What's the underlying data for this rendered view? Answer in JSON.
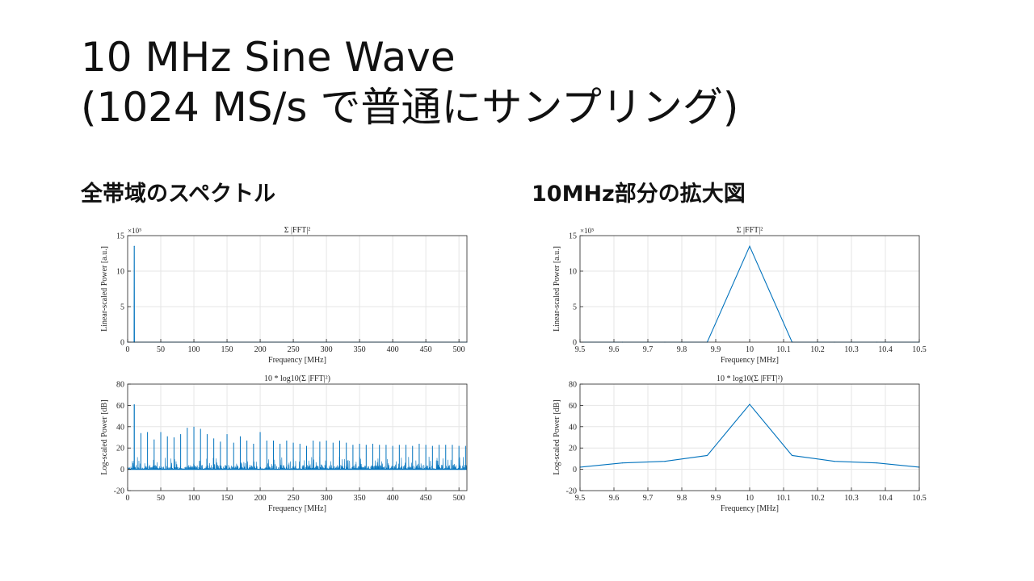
{
  "slide": {
    "title_line1": "10 MHz Sine Wave",
    "title_line2": "(1024 MS/s で普通にサンプリング)",
    "section_left": "全帯域のスペクトル",
    "section_right": "10MHz部分の拡大図"
  },
  "style": {
    "line_color": "#0072BD",
    "grid_color": "#e6e6e6",
    "axis_color": "#262626"
  },
  "chart_data": [
    {
      "id": "full-linear",
      "type": "line",
      "title": "Σ |FFT|²",
      "xlabel": "Frequency [MHz]",
      "ylabel": "Linear-scaled Power [a.u.]",
      "exponent_label": "×10⁵",
      "xlim": [
        0,
        512
      ],
      "ylim": [
        0,
        15
      ],
      "xticks": [
        0,
        50,
        100,
        150,
        200,
        250,
        300,
        350,
        400,
        450,
        500
      ],
      "yticks": [
        0,
        5,
        10,
        15
      ],
      "grid": true,
      "series": [
        {
          "x": [
            0,
            9.8,
            10,
            10.2,
            512
          ],
          "y": [
            0,
            0,
            13.5,
            0,
            0
          ]
        }
      ]
    },
    {
      "id": "full-log",
      "type": "line",
      "title": "10 * log10(Σ |FFT|²)",
      "xlabel": "Frequency [MHz]",
      "ylabel": "Log-scaled Power [dB]",
      "xlim": [
        0,
        512
      ],
      "ylim": [
        -20,
        80
      ],
      "xticks": [
        0,
        50,
        100,
        150,
        200,
        250,
        300,
        350,
        400,
        450,
        500
      ],
      "yticks": [
        -20,
        0,
        20,
        40,
        60,
        80
      ],
      "grid": true,
      "series": [
        {
          "peak": {
            "x": 10,
            "y": 61
          },
          "noise_floor": 0,
          "spurs": [
            {
              "x": 20,
              "y": 34
            },
            {
              "x": 30,
              "y": 35
            },
            {
              "x": 40,
              "y": 28
            },
            {
              "x": 50,
              "y": 35
            },
            {
              "x": 60,
              "y": 31
            },
            {
              "x": 70,
              "y": 30
            },
            {
              "x": 80,
              "y": 33
            },
            {
              "x": 90,
              "y": 39
            },
            {
              "x": 100,
              "y": 40
            },
            {
              "x": 110,
              "y": 38
            },
            {
              "x": 120,
              "y": 33
            },
            {
              "x": 130,
              "y": 29
            },
            {
              "x": 140,
              "y": 26
            },
            {
              "x": 150,
              "y": 33
            },
            {
              "x": 160,
              "y": 25
            },
            {
              "x": 170,
              "y": 31
            },
            {
              "x": 180,
              "y": 27
            },
            {
              "x": 190,
              "y": 24
            },
            {
              "x": 200,
              "y": 35
            },
            {
              "x": 210,
              "y": 27
            },
            {
              "x": 220,
              "y": 27
            },
            {
              "x": 230,
              "y": 24
            },
            {
              "x": 240,
              "y": 27
            },
            {
              "x": 250,
              "y": 25
            },
            {
              "x": 260,
              "y": 24
            },
            {
              "x": 270,
              "y": 22
            },
            {
              "x": 280,
              "y": 27
            },
            {
              "x": 290,
              "y": 26
            },
            {
              "x": 300,
              "y": 27
            },
            {
              "x": 310,
              "y": 25
            },
            {
              "x": 320,
              "y": 27
            },
            {
              "x": 330,
              "y": 25
            },
            {
              "x": 340,
              "y": 23
            },
            {
              "x": 350,
              "y": 24
            },
            {
              "x": 360,
              "y": 23
            },
            {
              "x": 370,
              "y": 24
            },
            {
              "x": 380,
              "y": 23
            },
            {
              "x": 390,
              "y": 23
            },
            {
              "x": 400,
              "y": 22
            },
            {
              "x": 410,
              "y": 23
            },
            {
              "x": 420,
              "y": 23
            },
            {
              "x": 430,
              "y": 22
            },
            {
              "x": 440,
              "y": 24
            },
            {
              "x": 450,
              "y": 23
            },
            {
              "x": 460,
              "y": 22
            },
            {
              "x": 470,
              "y": 23
            },
            {
              "x": 480,
              "y": 23
            },
            {
              "x": 490,
              "y": 23
            },
            {
              "x": 500,
              "y": 22
            },
            {
              "x": 510,
              "y": 22
            }
          ]
        }
      ]
    },
    {
      "id": "zoom-linear",
      "type": "line",
      "title": "Σ |FFT|²",
      "xlabel": "Frequency [MHz]",
      "ylabel": "Linear-scaled Power [a.u.]",
      "exponent_label": "×10⁵",
      "xlim": [
        9.5,
        10.5
      ],
      "ylim": [
        0,
        15
      ],
      "xticks": [
        9.5,
        9.6,
        9.7,
        9.8,
        9.9,
        10,
        10.1,
        10.2,
        10.3,
        10.4,
        10.5
      ],
      "yticks": [
        0,
        5,
        10,
        15
      ],
      "grid": true,
      "series": [
        {
          "x": [
            9.5,
            9.625,
            9.75,
            9.875,
            10,
            10.125,
            10.25,
            10.375,
            10.5
          ],
          "y": [
            0,
            0,
            0,
            0,
            13.5,
            0,
            0,
            0,
            0
          ]
        }
      ]
    },
    {
      "id": "zoom-log",
      "type": "line",
      "title": "10 * log10(Σ |FFT|²)",
      "xlabel": "Frequency [MHz]",
      "ylabel": "Log-scaled Power [dB]",
      "xlim": [
        9.5,
        10.5
      ],
      "ylim": [
        -20,
        80
      ],
      "xticks": [
        9.5,
        9.6,
        9.7,
        9.8,
        9.9,
        10,
        10.1,
        10.2,
        10.3,
        10.4,
        10.5
      ],
      "yticks": [
        -20,
        0,
        20,
        40,
        60,
        80
      ],
      "grid": true,
      "series": [
        {
          "x": [
            9.5,
            9.625,
            9.75,
            9.875,
            10,
            10.125,
            10.25,
            10.375,
            10.5
          ],
          "y": [
            2,
            6,
            7.5,
            13,
            61,
            13,
            7.5,
            6,
            2
          ]
        }
      ]
    }
  ]
}
